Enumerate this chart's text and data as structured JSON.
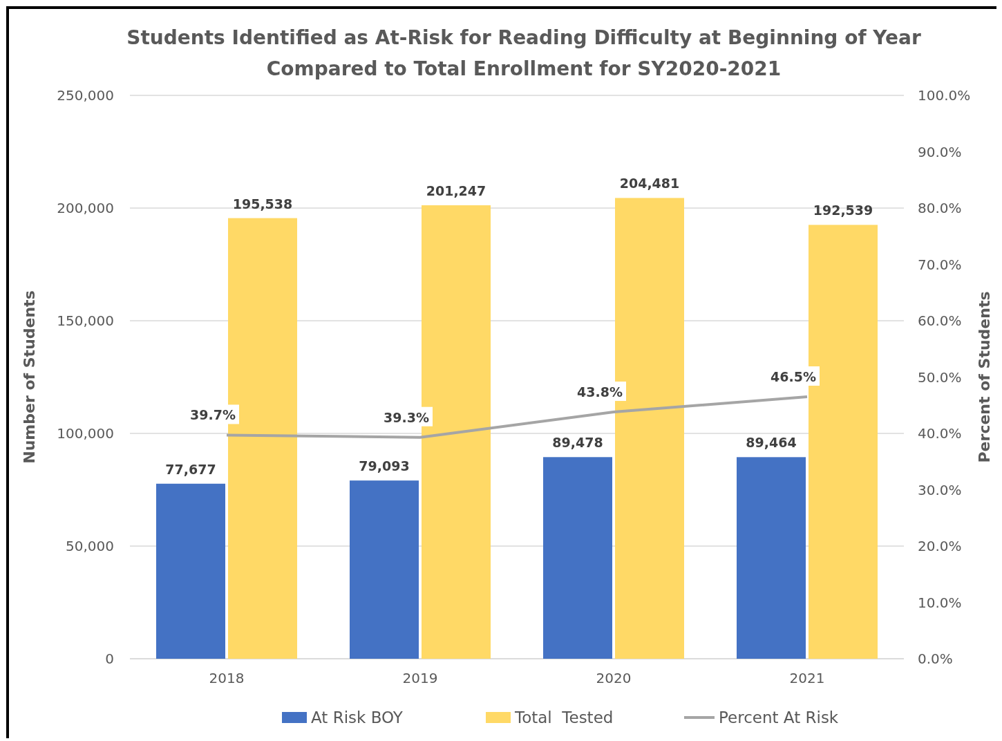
{
  "chart_data": {
    "type": "bar",
    "title": "Students Identified as At-Risk for Reading Difficulty at Beginning of Year\nCompared to Total Enrollment for SY2020-2021",
    "ylabel": "Number of Students",
    "y2label": "Percent of Students",
    "categories": [
      "2018",
      "2019",
      "2020",
      "2021"
    ],
    "series": [
      {
        "name": "At Risk BOY",
        "color": "#4472c4",
        "values": [
          77677,
          79093,
          89478,
          89464
        ],
        "value_labels": [
          "77,677",
          "79,093",
          "89,478",
          "89,464"
        ]
      },
      {
        "name": "Total  Tested",
        "color": "#ffd966",
        "values": [
          195538,
          201247,
          204481,
          192539
        ],
        "value_labels": [
          "195,538",
          "201,247",
          "204,481",
          "192,539"
        ]
      },
      {
        "name": "Percent At Risk",
        "type": "line",
        "axis": "y2",
        "color": "#a5a5a5",
        "values": [
          39.7,
          39.3,
          43.8,
          46.5
        ],
        "value_labels": [
          "39.7%",
          "39.3%",
          "43.8%",
          "46.5%"
        ]
      }
    ],
    "ylim": [
      0,
      250000
    ],
    "yticks": [
      0,
      {
        "value": 50000,
        "label": "50,000"
      },
      {
        "value": 100000,
        "label": "100,000"
      },
      {
        "value": 150000,
        "label": "150,000"
      },
      {
        "value": 200000,
        "label": "200,000"
      },
      {
        "value": 250000,
        "label": "250,000"
      }
    ],
    "y2lim": [
      0,
      100
    ],
    "y2ticks": [
      {
        "value": 0,
        "label": "0.0%"
      },
      {
        "value": 10,
        "label": "10.0%"
      },
      {
        "value": 20,
        "label": "20.0%"
      },
      {
        "value": 30,
        "label": "30.0%"
      },
      {
        "value": 40,
        "label": "40.0%"
      },
      {
        "value": 50,
        "label": "50.0%"
      },
      {
        "value": 60,
        "label": "60.0%"
      },
      {
        "value": 70,
        "label": "70.0%"
      },
      {
        "value": 80,
        "label": "80.0%"
      },
      {
        "value": 90,
        "label": "90.0%"
      },
      {
        "value": 100,
        "label": "100.0%"
      }
    ],
    "grid": "y",
    "legend": "bottom",
    "marker": "none",
    "line_style": "solid"
  }
}
